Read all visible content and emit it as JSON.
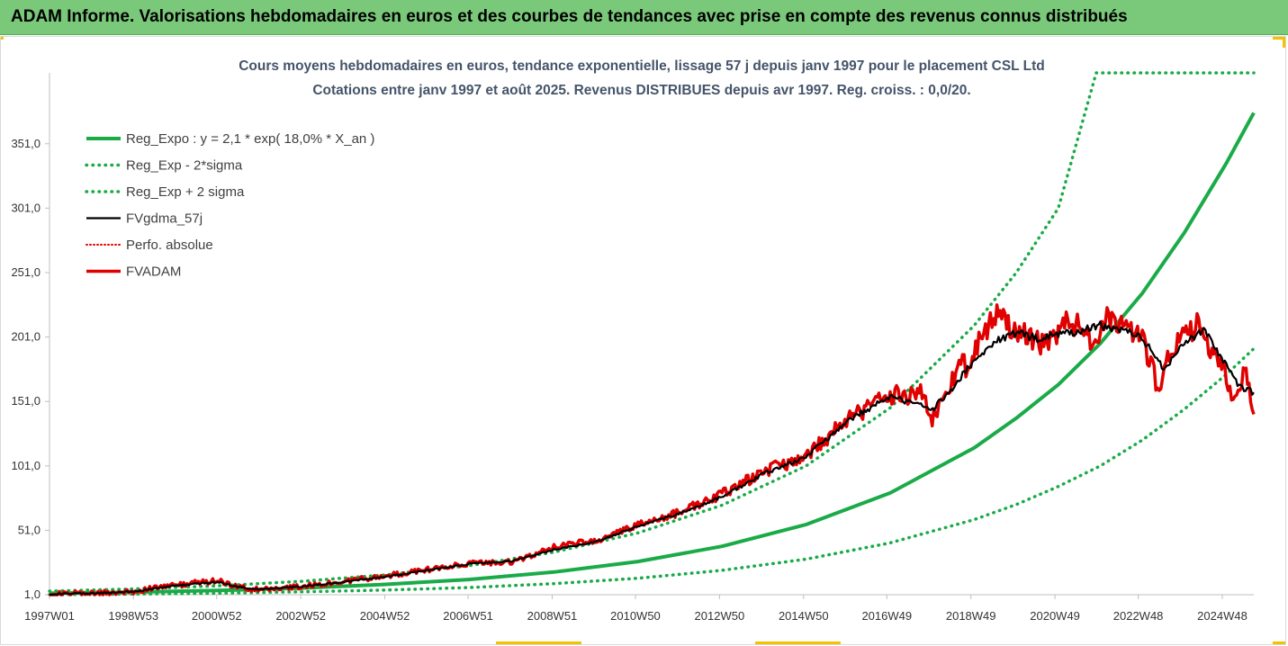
{
  "header": {
    "title": "ADAM Informe. Valorisations hebdomadaires en euros et des courbes de tendances avec prise en compte des revenus connus distribués"
  },
  "chart_data": {
    "type": "line",
    "title": "Cours moyens hebdomadaires en euros, tendance exponentielle, lissage 57 j depuis janv 1997 pour le placement CSL Ltd",
    "subtitle": "Cotations entre janv 1997 et août 2025. Revenus DISTRIBUES depuis avr 1997. Reg. croiss. : 0,0/20.",
    "y_ticks": [
      "1,0",
      "51,0",
      "101,0",
      "151,0",
      "201,0",
      "251,0",
      "301,0",
      "351,0"
    ],
    "x_ticks": [
      "1997W01",
      "1998W53",
      "2000W52",
      "2002W52",
      "2004W52",
      "2006W51",
      "2008W51",
      "2010W50",
      "2012W50",
      "2014W50",
      "2016W49",
      "2018W49",
      "2020W49",
      "2022W48",
      "2024W48"
    ],
    "ylim": [
      1,
      406
    ],
    "xlim": [
      1997.0,
      2025.65
    ],
    "grid": false,
    "legend_position": "top-left",
    "colors": {
      "green": "#1aab48",
      "black": "#000000",
      "red": "#e00000"
    },
    "series": [
      {
        "name": "Reg_Expo : y = 2,1 * exp( 18,0% *  X_an )",
        "style": "solid-green-thick",
        "x": [
          1997.0,
          1999.0,
          2001.0,
          2003.0,
          2005.0,
          2007.0,
          2009.0,
          2011.0,
          2013.0,
          2015.0,
          2017.0,
          2019.0,
          2020.0,
          2021.0,
          2022.0,
          2023.0,
          2024.0,
          2025.0,
          2025.65
        ],
        "y": [
          2.1,
          3.0,
          4.3,
          6.2,
          9.0,
          12.9,
          18.6,
          26.8,
          38.6,
          55.5,
          80.0,
          115,
          138,
          164,
          196,
          235,
          282,
          336,
          375
        ]
      },
      {
        "name": "Reg_Exp - 2*sigma",
        "style": "dotted-green",
        "x": [
          1997.0,
          1999.0,
          2001.0,
          2003.0,
          2005.0,
          2007.0,
          2009.0,
          2011.0,
          2013.0,
          2015.0,
          2017.0,
          2019.0,
          2020.0,
          2021.0,
          2022.0,
          2023.0,
          2024.0,
          2025.0,
          2025.65
        ],
        "y": [
          1.1,
          1.5,
          2.2,
          3.2,
          4.6,
          6.6,
          9.6,
          13.8,
          19.9,
          28.6,
          41.2,
          59.3,
          71,
          85,
          101,
          121,
          145,
          172,
          192
        ]
      },
      {
        "name": "Reg_Exp + 2 sigma",
        "style": "dotted-green",
        "x": [
          1997.0,
          1999.0,
          2001.0,
          2003.0,
          2005.0,
          2007.0,
          2009.0,
          2011.0,
          2013.0,
          2015.0,
          2017.0,
          2019.0,
          2020.0,
          2021.0,
          2021.9,
          2023.0,
          2024.0,
          2025.0,
          2025.65
        ],
        "y": [
          3.8,
          5.5,
          7.9,
          11.4,
          16.4,
          23.6,
          34.0,
          49.0,
          70.5,
          101,
          146,
          210,
          251,
          301,
          406,
          406,
          406,
          406,
          406
        ]
      },
      {
        "name": "FVgdma_57j",
        "style": "solid-black",
        "x": [
          1997.0,
          1998.0,
          1999.0,
          2000.0,
          2001.0,
          2001.5,
          2002.0,
          2003.0,
          2004.0,
          2005.0,
          2006.0,
          2007.0,
          2008.0,
          2009.0,
          2010.0,
          2011.0,
          2012.0,
          2013.0,
          2014.0,
          2015.0,
          2016.0,
          2017.0,
          2018.0,
          2018.4,
          2018.8,
          2019.5,
          2020.0,
          2020.5,
          2021.0,
          2021.5,
          2022.0,
          2022.5,
          2023.0,
          2023.5,
          2024.0,
          2024.5,
          2025.0,
          2025.3,
          2025.65
        ],
        "y": [
          1.5,
          2.0,
          3.5,
          8.0,
          11.0,
          7.0,
          5.0,
          7.5,
          11.0,
          15.0,
          20.0,
          25.0,
          27.0,
          36.0,
          42.0,
          54.0,
          64.0,
          77.0,
          95.0,
          108.0,
          136.0,
          155.0,
          145.0,
          158.0,
          175.0,
          198.0,
          204.0,
          200.0,
          203.0,
          205.0,
          210.0,
          207.0,
          200.0,
          176.0,
          197.0,
          206.0,
          178.0,
          162.0,
          158.0
        ]
      },
      {
        "name": "Perfo. absolue",
        "style": "dotted-red",
        "x": [
          1997.0,
          1998.0,
          1999.0,
          2000.0,
          2001.0,
          2001.5,
          2002.0,
          2003.0,
          2004.0,
          2005.0,
          2006.0,
          2007.0,
          2008.0,
          2009.0,
          2010.0,
          2011.0,
          2012.0,
          2013.0,
          2014.0,
          2015.0,
          2016.0,
          2017.0,
          2018.0,
          2018.4,
          2018.8,
          2019.5,
          2020.0,
          2020.5,
          2021.0,
          2021.5,
          2022.0,
          2022.5,
          2023.0,
          2023.5,
          2024.0,
          2024.5,
          2025.0,
          2025.3,
          2025.65
        ],
        "y": [
          1.5,
          2.0,
          3.5,
          8.0,
          11.0,
          7.0,
          5.0,
          7.5,
          11.0,
          15.0,
          20.0,
          25.0,
          27.0,
          36.0,
          42.0,
          54.0,
          64.0,
          77.0,
          95.0,
          108.0,
          136.0,
          155.0,
          145.0,
          158.0,
          175.0,
          198.0,
          204.0,
          200.0,
          203.0,
          205.0,
          210.0,
          207.0,
          200.0,
          176.0,
          197.0,
          206.0,
          178.0,
          162.0,
          158.0
        ]
      },
      {
        "name": "FVADAM",
        "style": "solid-red-thick",
        "x": [
          1997.0,
          1998.0,
          1999.0,
          2000.0,
          2001.0,
          2001.5,
          2002.0,
          2003.0,
          2004.0,
          2005.0,
          2006.0,
          2007.0,
          2008.0,
          2009.0,
          2009.6,
          2010.0,
          2011.0,
          2012.0,
          2013.0,
          2014.0,
          2015.0,
          2016.0,
          2017.0,
          2017.8,
          2018.0,
          2018.4,
          2018.6,
          2018.8,
          2019.5,
          2020.0,
          2020.5,
          2021.0,
          2021.3,
          2021.8,
          2022.0,
          2022.2,
          2022.5,
          2023.0,
          2023.4,
          2023.6,
          2024.0,
          2024.3,
          2024.5,
          2025.0,
          2025.2,
          2025.4,
          2025.5,
          2025.65
        ],
        "y": [
          1.5,
          2.0,
          3.5,
          8.5,
          12.0,
          7.0,
          4.5,
          7.5,
          11.5,
          15.5,
          20.5,
          25.5,
          26.0,
          38.0,
          42.0,
          42.0,
          55.0,
          65.0,
          79.0,
          97.0,
          108.0,
          138.0,
          156.0,
          157.0,
          137.0,
          160.0,
          178.0,
          179.0,
          218.0,
          205.0,
          196.0,
          205.0,
          215.0,
          195.0,
          210.0,
          218.0,
          207.0,
          198.0,
          160.0,
          185.0,
          203.0,
          210.0,
          200.0,
          170.0,
          152.0,
          172.0,
          168.0,
          141.0
        ]
      }
    ]
  }
}
